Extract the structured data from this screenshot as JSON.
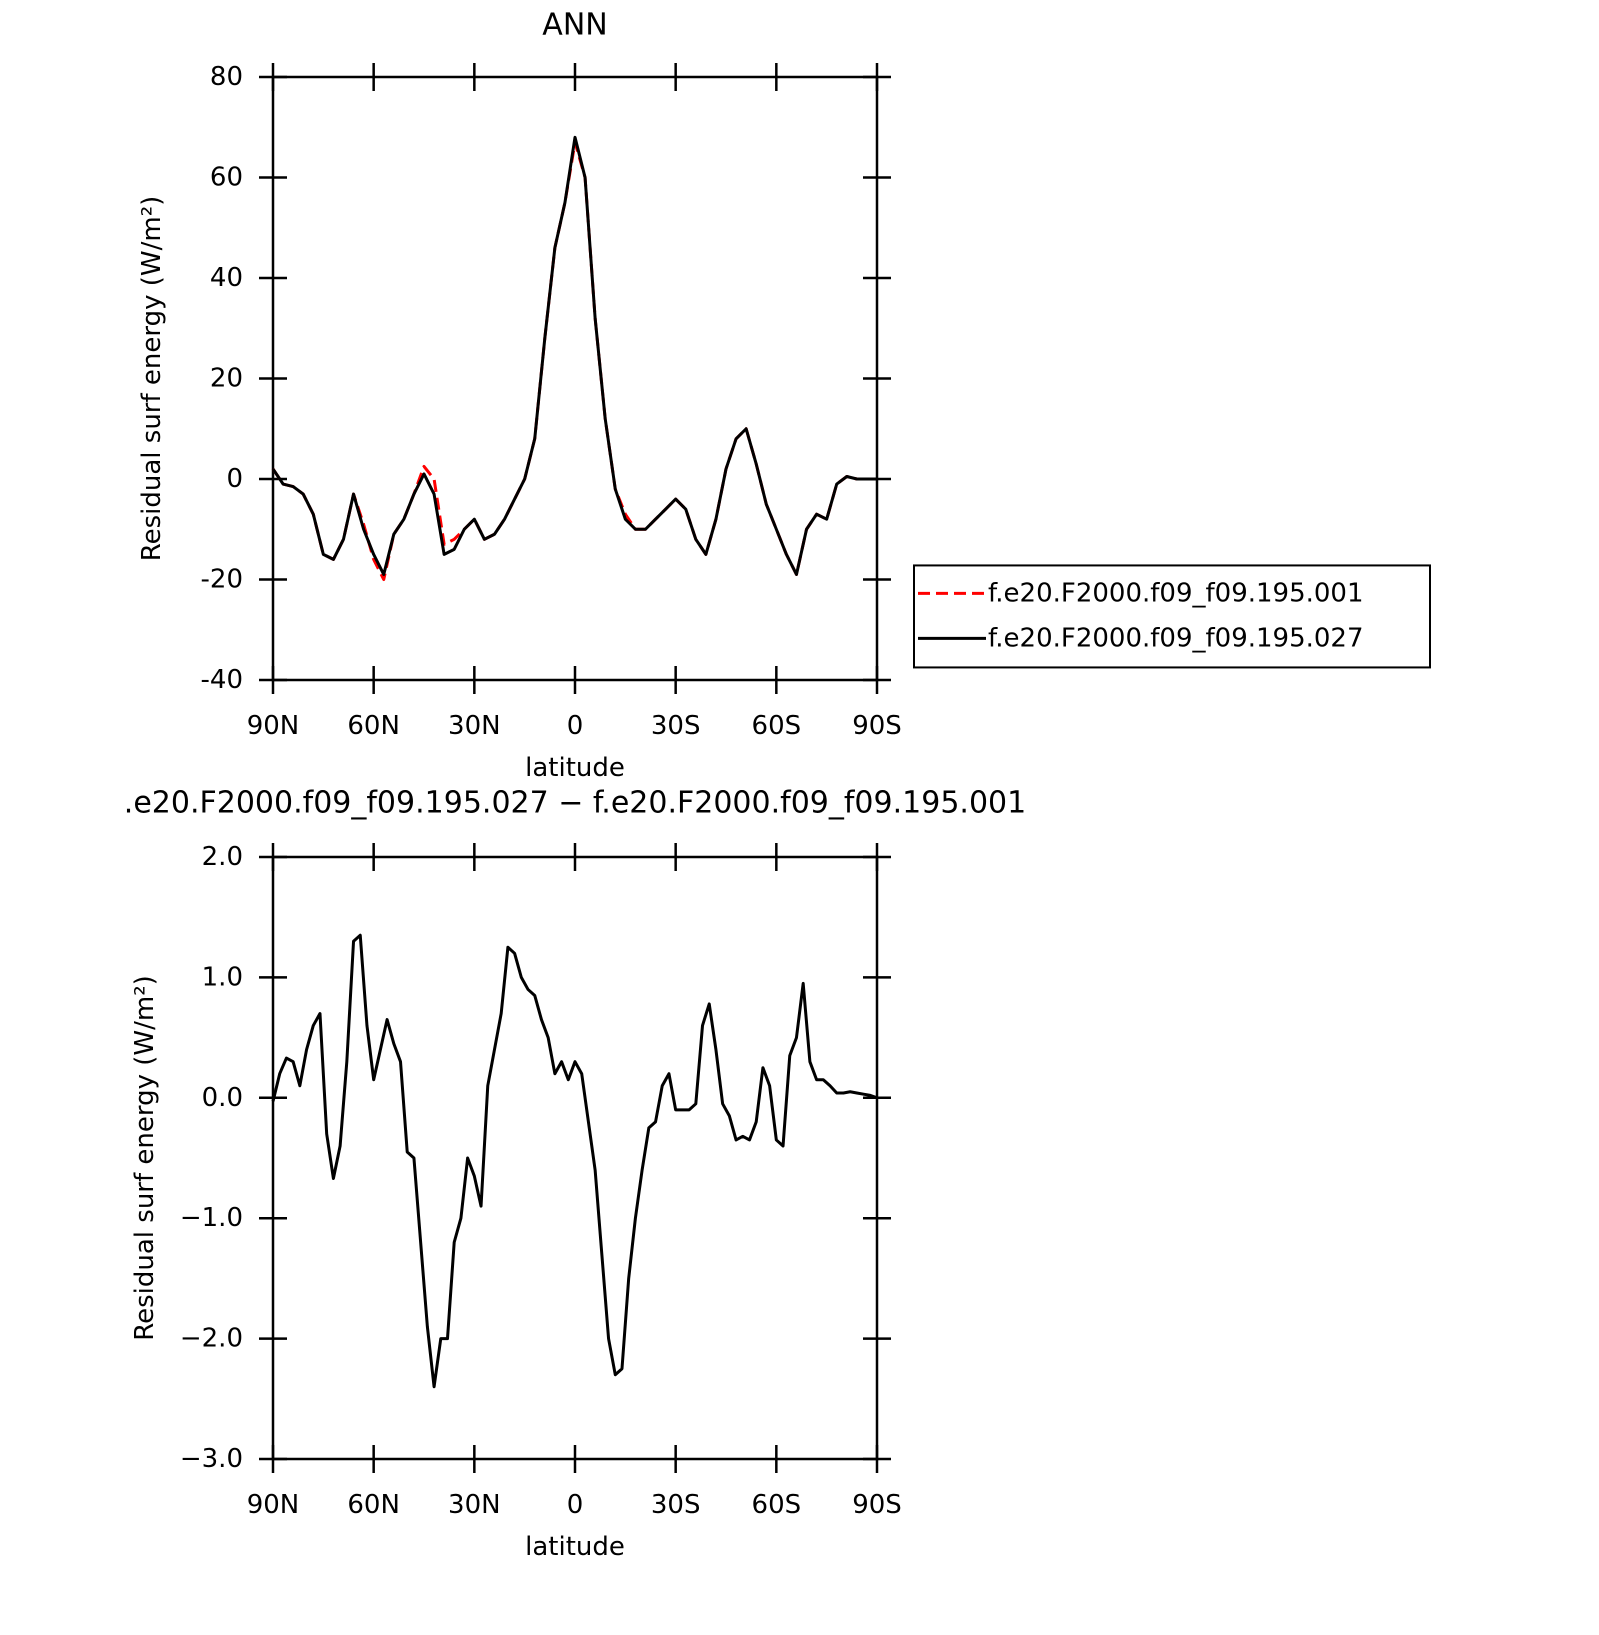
{
  "chart_data": [
    {
      "type": "line",
      "title": "ANN",
      "ylabel": "Residual surf energy (W/m²)",
      "xlabel": "latitude",
      "x": [
        90,
        87,
        84,
        81,
        78,
        75,
        72,
        69,
        66,
        63,
        60,
        57,
        54,
        51,
        48,
        45,
        42,
        39,
        36,
        33,
        30,
        27,
        24,
        21,
        18,
        15,
        12,
        9,
        6,
        3,
        0,
        -3,
        -6,
        -9,
        -12,
        -15,
        -18,
        -21,
        -24,
        -27,
        -30,
        -33,
        -36,
        -39,
        -42,
        -45,
        -48,
        -51,
        -54,
        -57,
        -60,
        -63,
        -66,
        -69,
        -72,
        -75,
        -78,
        -81,
        -84,
        -87,
        -90
      ],
      "xlim": [
        90,
        -90
      ],
      "xticks": [
        {
          "value": 90,
          "label": "90N"
        },
        {
          "value": 60,
          "label": "60N"
        },
        {
          "value": 30,
          "label": "30N"
        },
        0,
        {
          "value": -30,
          "label": "30S"
        },
        {
          "value": -60,
          "label": "60S"
        },
        {
          "value": -90,
          "label": "90S"
        }
      ],
      "ylim": [
        -40,
        80
      ],
      "yticks": [
        -40,
        -20,
        0,
        20,
        40,
        60,
        80
      ],
      "legend": "outside-right",
      "series": [
        {
          "name": "f.e20.F2000.f09_f09.195.001",
          "color": "#ff0000",
          "dash": true,
          "values": [
            2,
            -1,
            -1.5,
            -3,
            -7,
            -15,
            -16,
            -12,
            -3,
            -9,
            -16,
            -20,
            -11,
            -8,
            -3,
            2.5,
            0,
            -13,
            -12,
            -10,
            -8,
            -12,
            -11,
            -8,
            -4,
            0,
            8,
            28,
            46,
            55,
            67,
            60,
            32,
            12,
            -2,
            -7,
            -10,
            -10,
            -8,
            -6,
            -4,
            -6,
            -12,
            -15,
            -8,
            2,
            8,
            10,
            3,
            -5,
            -10,
            -15,
            -19,
            -10,
            -7,
            -8,
            -1,
            0.5,
            0,
            0,
            0
          ]
        },
        {
          "name": "f.e20.F2000.f09_f09.195.027",
          "color": "#000000",
          "dash": false,
          "values": [
            2,
            -1,
            -1.5,
            -3,
            -7,
            -15,
            -16,
            -12,
            -3,
            -10,
            -15,
            -19,
            -11,
            -8,
            -3,
            1,
            -3,
            -15,
            -14,
            -10,
            -8,
            -12,
            -11,
            -8,
            -4,
            0,
            8,
            28,
            46,
            55,
            68,
            60,
            32,
            12,
            -2,
            -8,
            -10,
            -10,
            -8,
            -6,
            -4,
            -6,
            -12,
            -15,
            -8,
            2,
            8,
            10,
            3,
            -5,
            -10,
            -15,
            -19,
            -10,
            -7,
            -8,
            -1,
            0.5,
            0,
            0,
            0
          ]
        }
      ]
    },
    {
      "type": "line",
      "title": ".e20.F2000.f09_f09.195.027 − f.e20.F2000.f09_f09.195.001",
      "ylabel": "Residual surf energy (W/m²)",
      "xlabel": "latitude",
      "x": [
        90,
        88,
        86,
        84,
        82,
        80,
        78,
        76,
        74,
        72,
        70,
        68,
        66,
        64,
        62,
        60,
        58,
        56,
        54,
        52,
        50,
        48,
        46,
        44,
        42,
        40,
        38,
        36,
        34,
        32,
        30,
        28,
        26,
        24,
        22,
        20,
        18,
        16,
        14,
        12,
        10,
        8,
        6,
        4,
        2,
        0,
        -2,
        -4,
        -6,
        -8,
        -10,
        -12,
        -14,
        -16,
        -18,
        -20,
        -22,
        -24,
        -26,
        -28,
        -30,
        -32,
        -34,
        -36,
        -38,
        -40,
        -42,
        -44,
        -46,
        -48,
        -50,
        -52,
        -54,
        -56,
        -58,
        -60,
        -62,
        -64,
        -66,
        -68,
        -70,
        -72,
        -74,
        -76,
        -78,
        -80,
        -82,
        -84,
        -86,
        -88,
        -90
      ],
      "xlim": [
        90,
        -90
      ],
      "xticks": [
        {
          "value": 90,
          "label": "90N"
        },
        {
          "value": 60,
          "label": "60N"
        },
        {
          "value": 30,
          "label": "30N"
        },
        0,
        {
          "value": -30,
          "label": "30S"
        },
        {
          "value": -60,
          "label": "60S"
        },
        {
          "value": -90,
          "label": "90S"
        }
      ],
      "ylim": [
        -3,
        2
      ],
      "yticks": [
        {
          "value": -3,
          "label": "−3.0"
        },
        {
          "value": -2,
          "label": "−2.0"
        },
        {
          "value": -1,
          "label": "−1.0"
        },
        {
          "value": 0,
          "label": "0.0"
        },
        {
          "value": 1,
          "label": "1.0"
        },
        {
          "value": 2,
          "label": "2.0"
        }
      ],
      "color": "#000000",
      "values": [
        -0.03,
        0.2,
        0.33,
        0.3,
        0.1,
        0.4,
        0.6,
        0.7,
        -0.3,
        -0.67,
        -0.4,
        0.3,
        1.3,
        1.35,
        0.6,
        0.15,
        0.4,
        0.65,
        0.45,
        0.3,
        -0.45,
        -0.5,
        -1.2,
        -1.9,
        -2.4,
        -2.0,
        -2.0,
        -1.2,
        -1.0,
        -0.5,
        -0.65,
        -0.9,
        0.1,
        0.4,
        0.7,
        1.25,
        1.2,
        1.0,
        0.9,
        0.85,
        0.65,
        0.5,
        0.2,
        0.3,
        0.15,
        0.3,
        0.2,
        -0.2,
        -0.6,
        -1.3,
        -2.0,
        -2.3,
        -2.25,
        -1.5,
        -1.0,
        -0.6,
        -0.25,
        -0.2,
        0.1,
        0.2,
        -0.1,
        -0.1,
        -0.1,
        -0.05,
        0.6,
        0.78,
        0.4,
        -0.05,
        -0.15,
        -0.35,
        -0.32,
        -0.35,
        -0.2,
        0.25,
        0.1,
        -0.35,
        -0.4,
        0.35,
        0.5,
        0.95,
        0.3,
        0.15,
        0.15,
        0.1,
        0.04,
        0.04,
        0.05,
        0.04,
        0.03,
        0.02,
        0.0
      ]
    }
  ]
}
